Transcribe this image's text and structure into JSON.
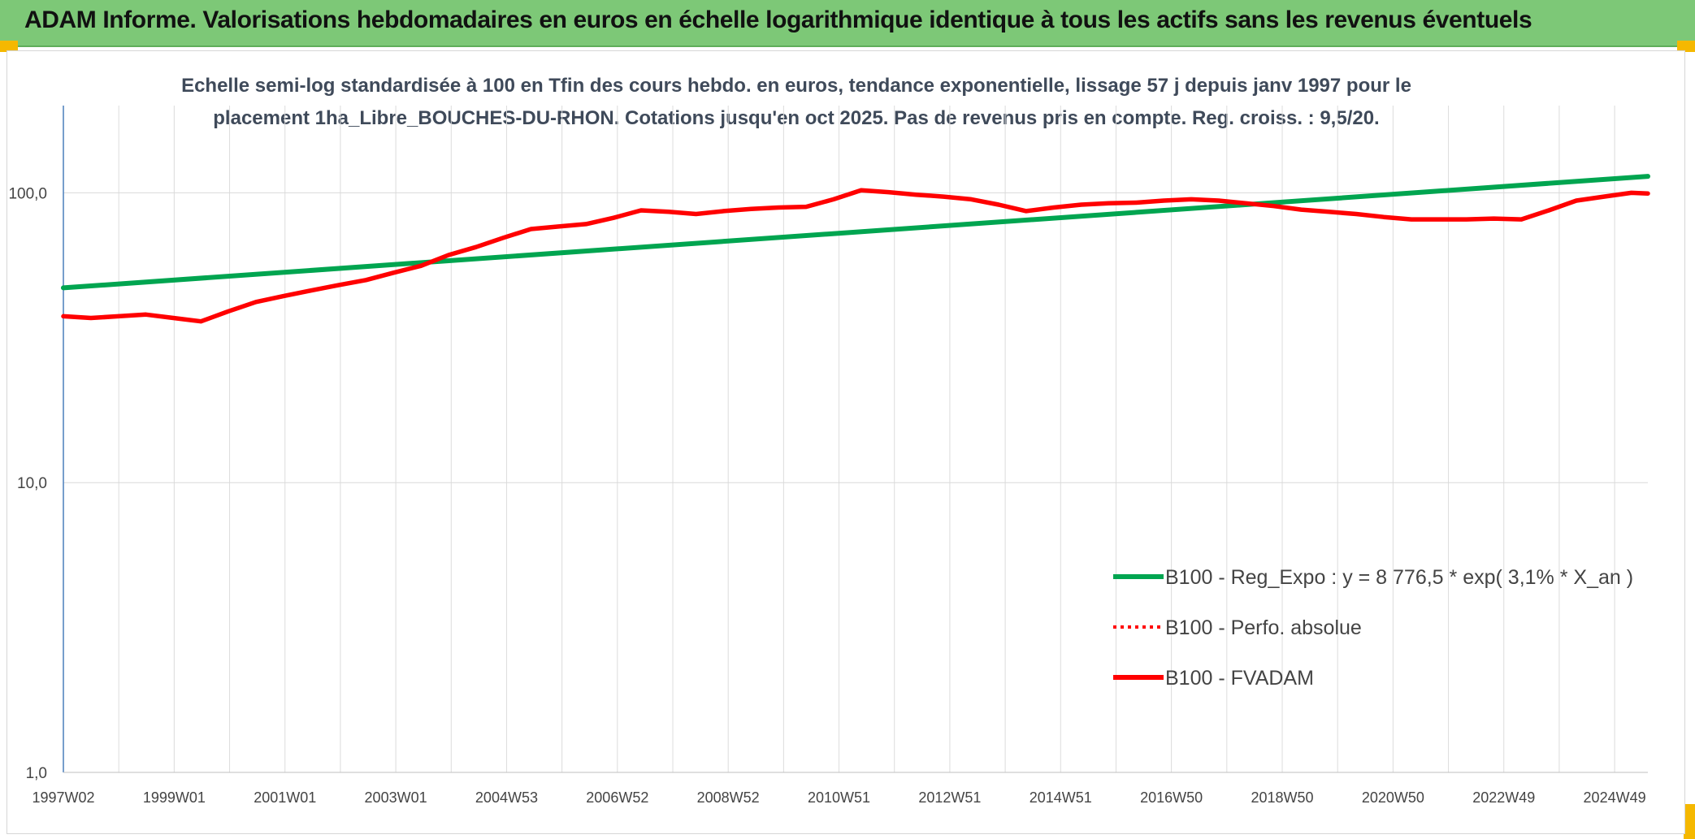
{
  "banner": {
    "title": "ADAM Informe. Valorisations hebdomadaires en euros en échelle logarithmique identique à tous les actifs sans les revenus éventuels",
    "color": "#7dc877"
  },
  "chart_data": {
    "type": "line",
    "title_lines": [
      "Echelle semi-log standardisée à 100 en Tfin des cours hebdo. en euros, tendance exponentielle, lissage 57 j depuis janv 1997 pour le",
      "placement 1ha_Libre_BOUCHES-DU-RHON. Cotations jusqu'en oct 2025. Pas de revenus pris en compte. Reg. croiss. : 9,5/20."
    ],
    "y_scale": "log",
    "ylim": [
      1,
      200
    ],
    "y_ticks": [
      {
        "value": 1,
        "label": "1,0"
      },
      {
        "value": 10,
        "label": "10,0"
      },
      {
        "value": 100,
        "label": "100,0"
      }
    ],
    "x_range": [
      1997.0,
      2025.8
    ],
    "x_tick_labels": [
      "1997W02",
      "1999W01",
      "2001W01",
      "2003W01",
      "2004W53",
      "2006W52",
      "2008W52",
      "2010W51",
      "2012W51",
      "2014W51",
      "2016W50",
      "2018W50",
      "2020W50",
      "2022W49",
      "2024W49"
    ],
    "grid": true,
    "legend_position": "bottom-right",
    "series": [
      {
        "name": "B100 - Reg_Expo : y = 8 776,5 * exp( 3,1% *  X_an )",
        "color": "#00a550",
        "style": "solid",
        "x": [
          1997.0,
          2025.8
        ],
        "y": [
          47.0,
          114.0
        ]
      },
      {
        "name": "B100 - Perfo. absolue",
        "color": "#ff0000",
        "style": "dotted",
        "x": [],
        "y": []
      },
      {
        "name": "B100 - FVADAM",
        "color": "#ff0000",
        "style": "solid",
        "x": [
          1997.0,
          1997.5,
          1998.0,
          1998.5,
          1999.0,
          1999.5,
          2000.0,
          2000.5,
          2001.0,
          2001.5,
          2002.0,
          2002.5,
          2003.0,
          2003.5,
          2004.0,
          2004.5,
          2005.0,
          2005.5,
          2006.0,
          2006.5,
          2007.0,
          2007.5,
          2008.0,
          2008.5,
          2009.0,
          2009.5,
          2010.0,
          2010.5,
          2011.0,
          2011.5,
          2012.0,
          2012.5,
          2013.0,
          2013.5,
          2014.0,
          2014.5,
          2015.0,
          2015.5,
          2016.0,
          2016.5,
          2017.0,
          2017.5,
          2018.0,
          2018.5,
          2019.0,
          2019.5,
          2020.0,
          2020.5,
          2021.0,
          2021.5,
          2022.0,
          2022.5,
          2023.0,
          2023.5,
          2024.0,
          2024.5,
          2025.0,
          2025.5,
          2025.8
        ],
        "y": [
          37.5,
          37.0,
          37.5,
          38.0,
          37.0,
          36.0,
          39.0,
          42.0,
          44.0,
          46.0,
          48.0,
          50.0,
          53.0,
          56.0,
          61.0,
          65.0,
          70.0,
          75.0,
          76.5,
          78.0,
          82.0,
          87.0,
          86.0,
          84.5,
          86.5,
          88.0,
          89.0,
          89.5,
          95.0,
          102.0,
          100.5,
          98.5,
          97.0,
          95.0,
          91.0,
          86.5,
          89.0,
          91.0,
          92.0,
          92.5,
          94.0,
          95.0,
          94.0,
          92.0,
          90.0,
          87.5,
          86.0,
          84.5,
          82.5,
          81.0,
          81.0,
          81.0,
          81.5,
          81.0,
          87.0,
          94.0,
          97.0,
          100.0,
          99.5
        ]
      }
    ]
  }
}
